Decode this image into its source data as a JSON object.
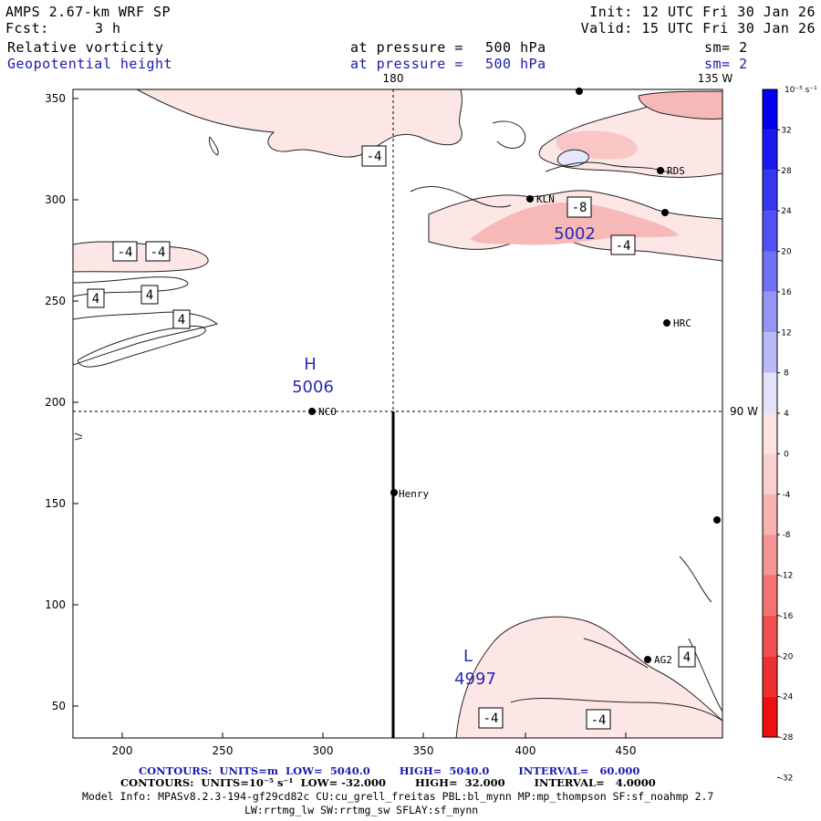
{
  "header": {
    "model": "AMPS 2.67-km WRF SP",
    "init": "Init: 12 UTC Fri 30 Jan 26",
    "fcst_label": "Fcst:",
    "fcst_value": "3 h",
    "valid": "Valid: 15 UTC Fri 30 Jan 26"
  },
  "fields": [
    {
      "name": "Relative vorticity",
      "level_label": "at pressure =",
      "level_value": "500 hPa",
      "sm": "sm= 2",
      "color": "#000000"
    },
    {
      "name": "Geopotential height",
      "level_label": "at pressure =",
      "level_value": "500 hPa",
      "sm": "sm= 2",
      "color": "#1a1ab0"
    }
  ],
  "map": {
    "x_ticks": [
      "200",
      "250",
      "300",
      "350",
      "400",
      "450"
    ],
    "y_ticks": [
      "350",
      "300",
      "250",
      "200",
      "150",
      "100",
      "50"
    ],
    "meridian_labels": {
      "lon_180": "180",
      "lon_135w": "135 W"
    },
    "parallel_label": "90 W",
    "stations": [
      {
        "name": "RDS"
      },
      {
        "name": "KLN"
      },
      {
        "name": "HRC"
      },
      {
        "name": "NCO"
      },
      {
        "name": "Henry"
      },
      {
        "name": "AG2"
      },
      {
        "name": ""
      },
      {
        "name": ""
      }
    ],
    "pressure_centers": [
      {
        "letter": "H",
        "value": "5006"
      },
      {
        "letter": "",
        "value": "5002"
      },
      {
        "letter": "L",
        "value": "4997"
      }
    ],
    "contour_labels": [
      "-4",
      "-4",
      "-4",
      "4",
      "4",
      "4",
      "-8",
      "-4",
      "-4",
      "-4",
      "4"
    ]
  },
  "colorbar": {
    "units": "10⁻⁵ s⁻¹",
    "labels": [
      "32",
      "28",
      "24",
      "20",
      "16",
      "12",
      "8",
      "4",
      "0",
      "-4",
      "-8",
      "-12",
      "-16",
      "-20",
      "-24",
      "-28",
      "-32"
    ],
    "colors": [
      "#0000ee",
      "#1a1af0",
      "#3535f2",
      "#5050f4",
      "#7070f5",
      "#9595f7",
      "#babafa",
      "#e2e2fd",
      "#fde2e2",
      "#fad0d0",
      "#f7b2b2",
      "#f59595",
      "#f37373",
      "#f15050",
      "#ef3030",
      "#ee1010"
    ]
  },
  "footer": {
    "line1_prefix": "CONTOURS:",
    "line1_units": "UNITS=m",
    "line1_low": "LOW=  5040.0",
    "line1_high": "HIGH=  5040.0",
    "line1_interval": "INTERVAL=   60.000",
    "line2_prefix": "CONTOURS:",
    "line2_units": "UNITS=10⁻⁵ s⁻¹",
    "line2_low": "LOW= -32.000",
    "line2_high": "HIGH=  32.000",
    "line2_interval": "INTERVAL=   4.0000",
    "line3": "Model Info: MPASv8.2.3-194-gf29cd82c CU:cu_grell_freitas PBL:bl_mynn MP:mp_thompson SF:sf_noahmp 2.7",
    "line4": "LW:rrtmg_lw SW:rrtmg_sw SFLAY:sf_mynn"
  }
}
